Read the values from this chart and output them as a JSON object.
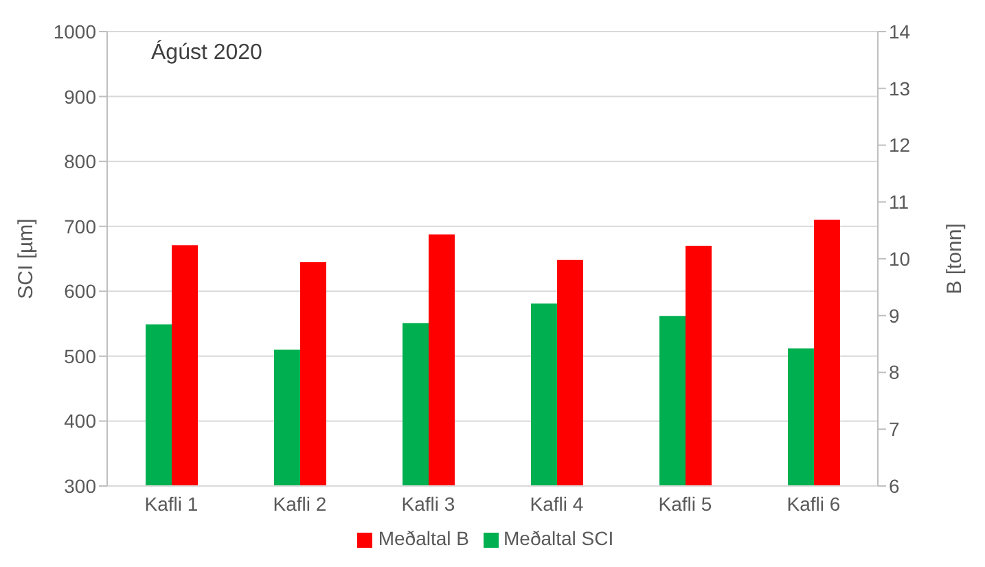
{
  "chart_data": {
    "type": "bar",
    "categories": [
      "Kafli 1",
      "Kafli 2",
      "Kafli 3",
      "Kafli 4",
      "Kafli 5",
      "Kafli 6"
    ],
    "series": [
      {
        "name": "Meðaltal SCI",
        "color": "#00b050",
        "values": [
          549,
          510,
          551,
          581,
          562,
          512
        ]
      },
      {
        "name": "Meðaltal B",
        "color": "#ff0000",
        "values": [
          10.24,
          9.94,
          10.43,
          9.98,
          10.23,
          10.69
        ],
        "axis": "y2"
      }
    ],
    "ylabel": "SCI [µm]",
    "y2label": "B [tonn]",
    "annotations": [
      "Ágúst 2020"
    ],
    "ylim": [
      300,
      1000
    ],
    "yticks": [
      300,
      400,
      500,
      600,
      700,
      800,
      900,
      1000
    ],
    "y2lim": [
      6,
      14
    ],
    "y2ticks": [
      6,
      7,
      8,
      9,
      10,
      11,
      12,
      13,
      14
    ],
    "grid": "y",
    "legend": "bottom"
  }
}
